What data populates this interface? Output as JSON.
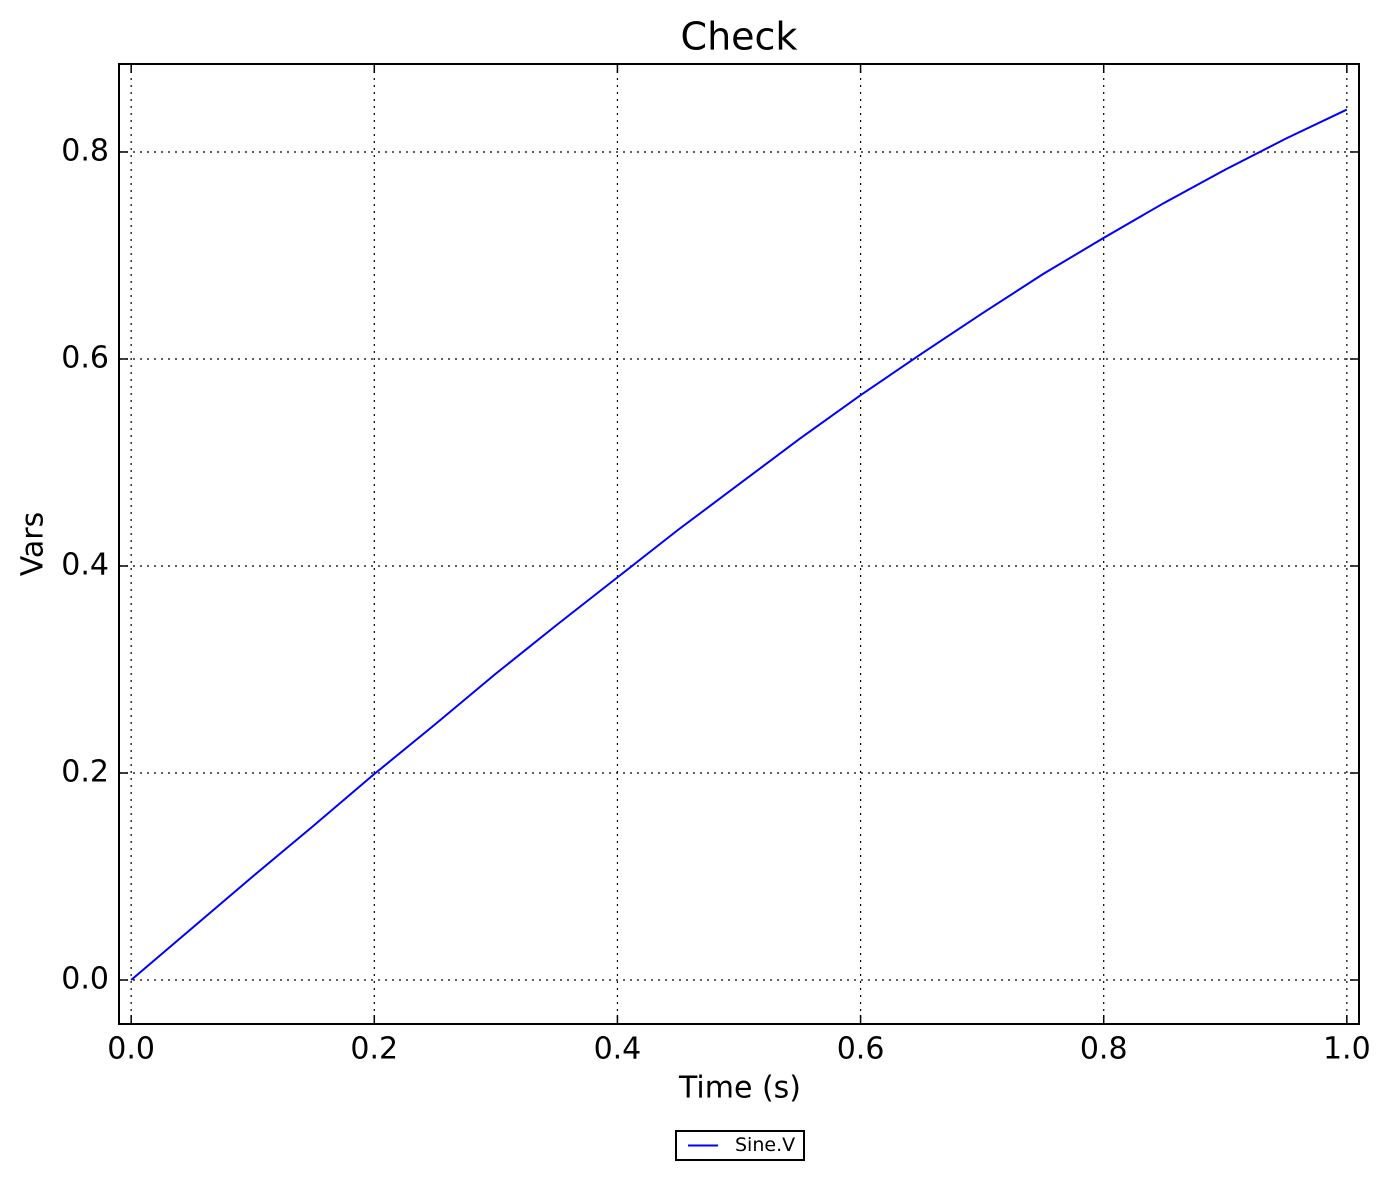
{
  "chart_data": {
    "type": "line",
    "title": "Check",
    "x_label": "Time (s)",
    "y_label": "Vars",
    "x": [
      0,
      0.05,
      0.1,
      0.15,
      0.2,
      0.25,
      0.3,
      0.35,
      0.4,
      0.45,
      0.5,
      0.55,
      0.6,
      0.65,
      0.7,
      0.75,
      0.8,
      0.85,
      0.9,
      0.95,
      1
    ],
    "series": [
      {
        "name": "Sine.V",
        "color": "#0000ff",
        "values": [
          0,
          0.05,
          0.1,
          0.149,
          0.199,
          0.247,
          0.296,
          0.343,
          0.389,
          0.435,
          0.479,
          0.523,
          0.565,
          0.605,
          0.644,
          0.682,
          0.717,
          0.751,
          0.783,
          0.813,
          0.841
        ]
      }
    ],
    "xlim": [
      -0.01,
      1.01
    ],
    "xticks": [
      {
        "value": 0,
        "label": "0.0"
      },
      0.2,
      0.4,
      0.6,
      0.8,
      {
        "value": 1,
        "label": "1.0"
      }
    ],
    "ylim": [
      -0.0425,
      0.885
    ],
    "yticks": [
      {
        "value": 0,
        "label": "0.0"
      },
      0.2,
      0.4,
      0.6,
      0.8
    ],
    "grid": true,
    "legend": "below"
  }
}
